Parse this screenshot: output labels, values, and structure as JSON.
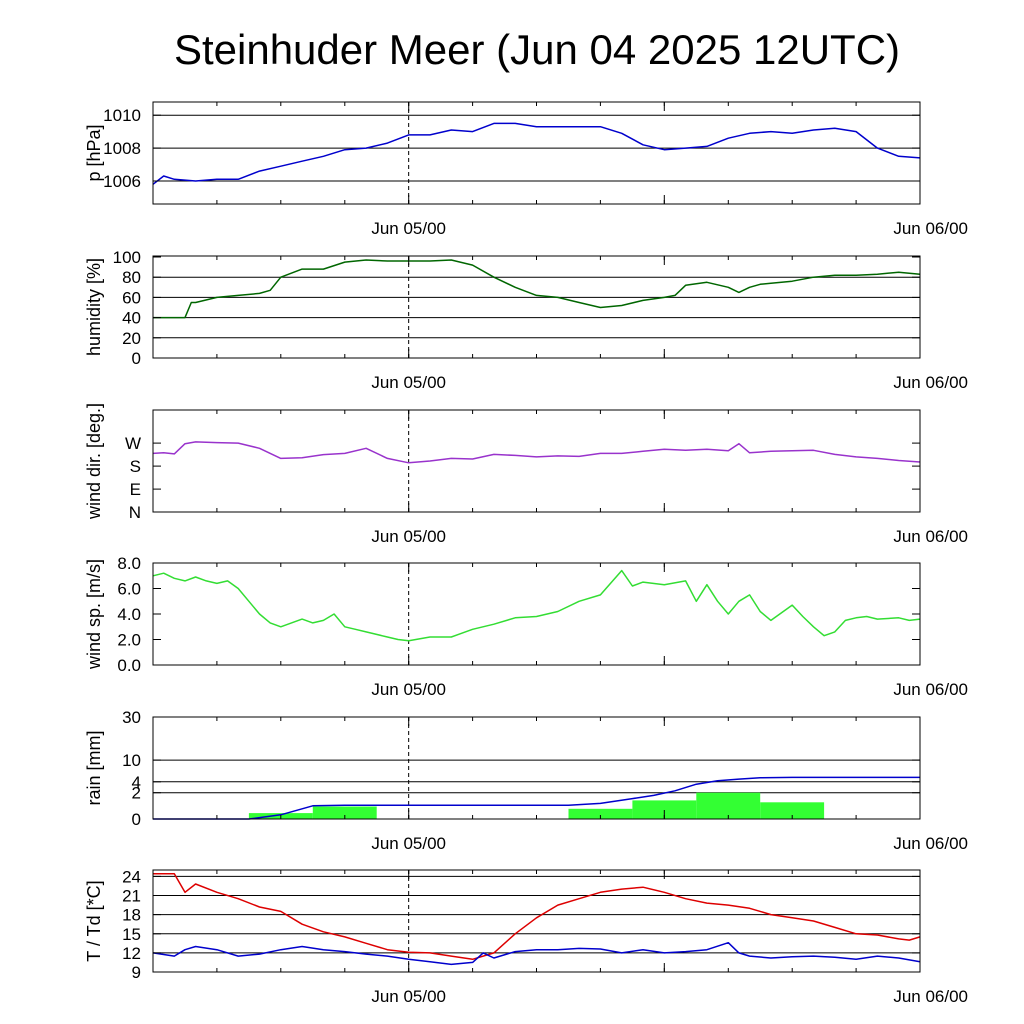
{
  "title": "Steinhuder Meer (Jun 04 2025 12UTC)",
  "chart_data": [
    {
      "type": "line",
      "ylabel": "p [hPa]",
      "x_ticks": [
        "Jun 05/00",
        "Jun 06/00"
      ],
      "ylim": [
        1004.6,
        1010.8
      ],
      "yticks": [
        1006,
        1008,
        1010
      ],
      "ytick_labels": [
        "1006",
        "1008",
        "1010"
      ],
      "gridlines": [
        1006,
        1008,
        1010
      ],
      "color": "#0000cc",
      "series": [
        {
          "x": [
            0,
            0.5,
            1,
            2,
            3,
            4,
            5,
            6,
            7,
            8,
            9,
            10,
            11,
            12,
            13,
            14,
            15,
            16,
            17,
            18,
            19,
            20,
            21,
            22,
            23,
            24,
            25,
            26,
            27,
            28,
            29,
            30,
            31,
            32,
            33,
            34,
            35,
            36
          ],
          "values": [
            1005.8,
            1006.3,
            1006.1,
            1006.0,
            1006.1,
            1006.1,
            1006.6,
            1006.9,
            1007.2,
            1007.5,
            1007.9,
            1008.0,
            1008.3,
            1008.8,
            1008.8,
            1009.1,
            1009.0,
            1009.5,
            1009.5,
            1009.3,
            1009.3,
            1009.3,
            1009.3,
            1008.9,
            1008.2,
            1007.9,
            1008.0,
            1008.1,
            1008.6,
            1008.9,
            1009.0,
            1008.9,
            1009.1,
            1009.2,
            1009.0,
            1008.0,
            1007.5,
            1007.4
          ]
        }
      ]
    },
    {
      "type": "line",
      "ylabel": "humidity [%]",
      "x_ticks": [
        "Jun 05/00",
        "Jun 06/00"
      ],
      "ylim": [
        0,
        101
      ],
      "yticks": [
        0,
        20,
        40,
        60,
        80,
        100
      ],
      "ytick_labels": [
        "0",
        "20",
        "40",
        "60",
        "80",
        "100"
      ],
      "gridlines": [
        20,
        40,
        60,
        80
      ],
      "color": "#006600",
      "series": [
        {
          "x": [
            0,
            1,
            1.5,
            1.8,
            2,
            3,
            4,
            5,
            5.5,
            6,
            7,
            8,
            9,
            10,
            11,
            12,
            13,
            14,
            15,
            16,
            17,
            18,
            19,
            20,
            21,
            22,
            23,
            24,
            24.5,
            25,
            26,
            27,
            27.5,
            28,
            28.5,
            29,
            30,
            31,
            32,
            33,
            34,
            35,
            35.5,
            36
          ],
          "values": [
            40,
            40,
            40,
            55,
            55,
            60,
            62,
            64,
            67,
            80,
            88,
            88,
            95,
            97,
            96,
            96,
            96,
            97,
            92,
            80,
            70,
            62,
            60,
            55,
            50,
            52,
            57,
            60,
            62,
            72,
            75,
            70,
            65,
            70,
            73,
            74,
            76,
            80,
            82,
            82,
            83,
            85,
            84,
            83
          ]
        }
      ]
    },
    {
      "type": "line",
      "ylabel": "wind dir. [deg.]",
      "x_ticks": [
        "Jun 05/00",
        "Jun 06/00"
      ],
      "ylim": [
        0,
        400
      ],
      "yticks": [
        0,
        90,
        180,
        270
      ],
      "ytick_labels": [
        "N",
        "E",
        "S",
        "W"
      ],
      "gridlines": [],
      "color": "#9933cc",
      "series": [
        {
          "x": [
            0,
            0.5,
            1,
            1.5,
            2,
            3,
            4,
            5,
            6,
            7,
            8,
            9,
            10,
            11,
            12,
            13,
            14,
            15,
            16,
            17,
            18,
            19,
            20,
            21,
            22,
            23,
            24,
            25,
            26,
            27,
            27.5,
            28,
            29,
            30,
            31,
            32,
            33,
            34,
            35,
            36
          ],
          "values": [
            230,
            232,
            228,
            268,
            275,
            272,
            270,
            250,
            210,
            213,
            225,
            230,
            250,
            210,
            193,
            200,
            210,
            208,
            226,
            222,
            216,
            220,
            218,
            230,
            230,
            238,
            246,
            242,
            246,
            240,
            268,
            232,
            238,
            240,
            242,
            226,
            216,
            210,
            202,
            196
          ]
        }
      ]
    },
    {
      "type": "line",
      "ylabel": "wind sp. [m/s]",
      "x_ticks": [
        "Jun 05/00",
        "Jun 06/00"
      ],
      "ylim": [
        0,
        8.0
      ],
      "yticks": [
        0,
        2,
        4,
        6,
        8
      ],
      "ytick_labels": [
        "0.0",
        "2.0",
        "4.0",
        "6.0",
        "8.0"
      ],
      "gridlines": [],
      "color": "#33dd33",
      "series": [
        {
          "x": [
            0,
            0.5,
            1,
            1.5,
            2,
            2.5,
            3,
            3.5,
            4,
            4.5,
            5,
            5.5,
            6,
            7,
            7.5,
            8,
            8.5,
            9,
            9.5,
            10,
            11,
            11.5,
            12,
            13,
            14,
            15,
            16,
            17,
            18,
            19,
            20,
            21,
            22,
            22.5,
            23,
            24,
            25,
            25.5,
            26,
            26.5,
            27,
            27.5,
            28,
            28.5,
            29,
            30,
            30.5,
            31,
            31.5,
            32,
            32.5,
            33,
            33.5,
            34,
            35,
            35.5,
            36
          ],
          "values": [
            7.0,
            7.2,
            6.8,
            6.6,
            6.9,
            6.6,
            6.4,
            6.6,
            6.0,
            5.0,
            4.0,
            3.3,
            3.0,
            3.6,
            3.3,
            3.5,
            4.0,
            3.0,
            2.8,
            2.6,
            2.2,
            2.0,
            1.9,
            2.2,
            2.2,
            2.8,
            3.2,
            3.7,
            3.8,
            4.2,
            5.0,
            5.5,
            7.4,
            6.2,
            6.5,
            6.3,
            6.6,
            5.0,
            6.3,
            5.0,
            4.0,
            5.0,
            5.5,
            4.2,
            3.5,
            4.7,
            3.8,
            3.0,
            2.3,
            2.6,
            3.5,
            3.7,
            3.8,
            3.6,
            3.7,
            3.5,
            3.6
          ]
        }
      ]
    },
    {
      "type": "bar+line",
      "ylabel": "rain [mm]",
      "x_ticks": [
        "Jun 05/00",
        "Jun 06/00"
      ],
      "ylim": [
        0,
        30
      ],
      "yticks": [
        0,
        2,
        4,
        10,
        30
      ],
      "ytick_labels": [
        "0",
        "2",
        "4",
        "10",
        "30"
      ],
      "gridlines": [
        2,
        4,
        10,
        30
      ],
      "bars": {
        "color": "#33ff33",
        "items": [
          {
            "x0": 4.5,
            "x1": 7.5,
            "value": 0.1
          },
          {
            "x0": 7.5,
            "x1": 10.5,
            "value": 0.45
          },
          {
            "x0": 19.5,
            "x1": 22.5,
            "value": 0.3
          },
          {
            "x0": 22.5,
            "x1": 25.5,
            "value": 1.0
          },
          {
            "x0": 25.5,
            "x1": 28.5,
            "value": 2.0
          },
          {
            "x0": 28.5,
            "x1": 31.5,
            "value": 0.8
          }
        ]
      },
      "series": [
        {
          "color": "#0000cc",
          "x": [
            0,
            4.5,
            6,
            7.5,
            9,
            10.5,
            19.5,
            21,
            22.5,
            23.5,
            24.5,
            25.5,
            26.5,
            27.5,
            28.5,
            30,
            36
          ],
          "values": [
            0,
            0,
            0.05,
            0.5,
            0.55,
            0.55,
            0.55,
            0.7,
            1.2,
            1.6,
            2.3,
            3.5,
            4.2,
            4.6,
            4.9,
            5.0,
            5.0
          ]
        }
      ]
    },
    {
      "type": "line",
      "ylabel": "T / Td [*C]",
      "x_ticks": [
        "Jun 05/00",
        "Jun 06/00"
      ],
      "ylim": [
        9,
        25
      ],
      "yticks": [
        9,
        12,
        15,
        18,
        21,
        24
      ],
      "ytick_labels": [
        "9",
        "12",
        "15",
        "18",
        "21",
        "24"
      ],
      "gridlines": [
        12,
        15,
        18,
        21,
        24
      ],
      "series": [
        {
          "color": "#dd0000",
          "x": [
            0,
            1,
            1.5,
            2,
            3,
            4,
            5,
            6,
            7,
            8,
            9,
            10,
            11,
            12,
            13,
            14,
            15,
            16,
            17,
            18,
            19,
            20,
            21,
            22,
            23,
            24,
            25,
            26,
            27,
            28,
            29,
            30,
            31,
            32,
            33,
            34,
            35,
            35.5,
            36
          ],
          "values": [
            24.4,
            24.4,
            21.5,
            22.8,
            21.5,
            20.5,
            19.2,
            18.5,
            16.5,
            15.3,
            14.5,
            13.5,
            12.5,
            12.1,
            12.0,
            11.5,
            11.0,
            12.0,
            15.0,
            17.5,
            19.5,
            20.5,
            21.5,
            22.0,
            22.3,
            21.5,
            20.5,
            19.8,
            19.5,
            19.0,
            18.0,
            17.5,
            17.0,
            16.0,
            15.0,
            14.8,
            14.2,
            14.0,
            14.5
          ]
        },
        {
          "color": "#0000cc",
          "x": [
            0,
            1,
            1.5,
            2,
            3,
            4,
            5,
            6,
            7,
            8,
            9,
            10,
            11,
            12,
            13,
            14,
            15,
            15.5,
            16,
            17,
            18,
            19,
            20,
            21,
            22,
            23,
            24,
            25,
            26,
            27,
            27.5,
            28,
            29,
            30,
            31,
            32,
            33,
            34,
            35,
            36
          ],
          "values": [
            12.0,
            11.5,
            12.5,
            13.0,
            12.5,
            11.5,
            11.8,
            12.5,
            13.0,
            12.5,
            12.2,
            11.8,
            11.5,
            11.0,
            10.6,
            10.2,
            10.5,
            12.0,
            11.2,
            12.2,
            12.5,
            12.5,
            12.7,
            12.6,
            12.0,
            12.5,
            12.0,
            12.2,
            12.5,
            13.6,
            12.0,
            11.5,
            11.2,
            11.4,
            11.5,
            11.3,
            11.0,
            11.5,
            11.2,
            10.6
          ]
        }
      ]
    }
  ]
}
